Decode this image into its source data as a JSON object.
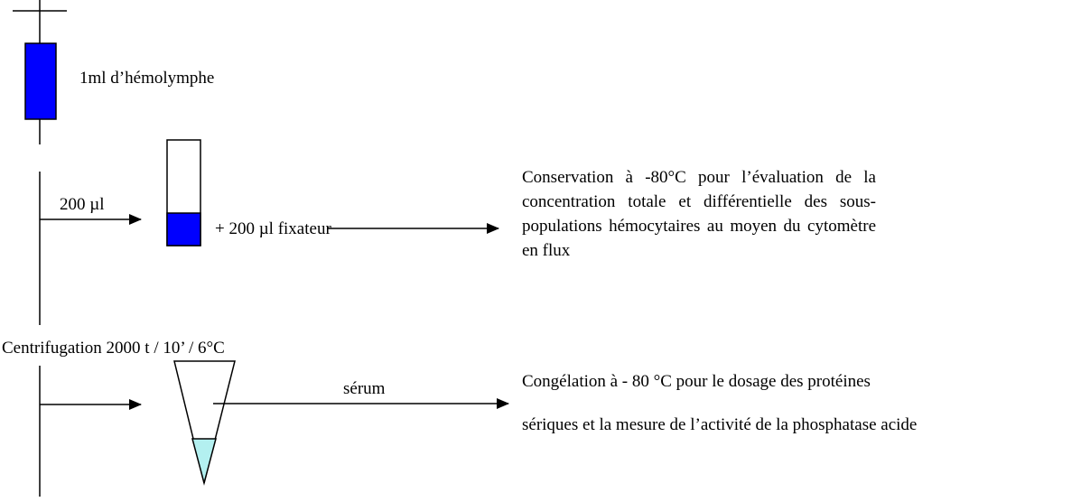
{
  "syringe_label": "1ml d’hémolymphe",
  "aliquot": {
    "volume": "200 µl",
    "additive": "+ 200 µl fixateur",
    "destination": "Conservation à -80°C pour l’évaluation de la concentration totale et différentielle des sous-populations hémocytaires au moyen du cytomètre en flux"
  },
  "centrifugation": "Centrifugation 2000 t / 10’ / 6°C",
  "serum": {
    "label": "sérum",
    "destination_lines": [
      "Congélation à - 80 °C pour le dosage des protéines",
      "sériques et la mesure de l’activité de la phosphatase acide"
    ]
  }
}
